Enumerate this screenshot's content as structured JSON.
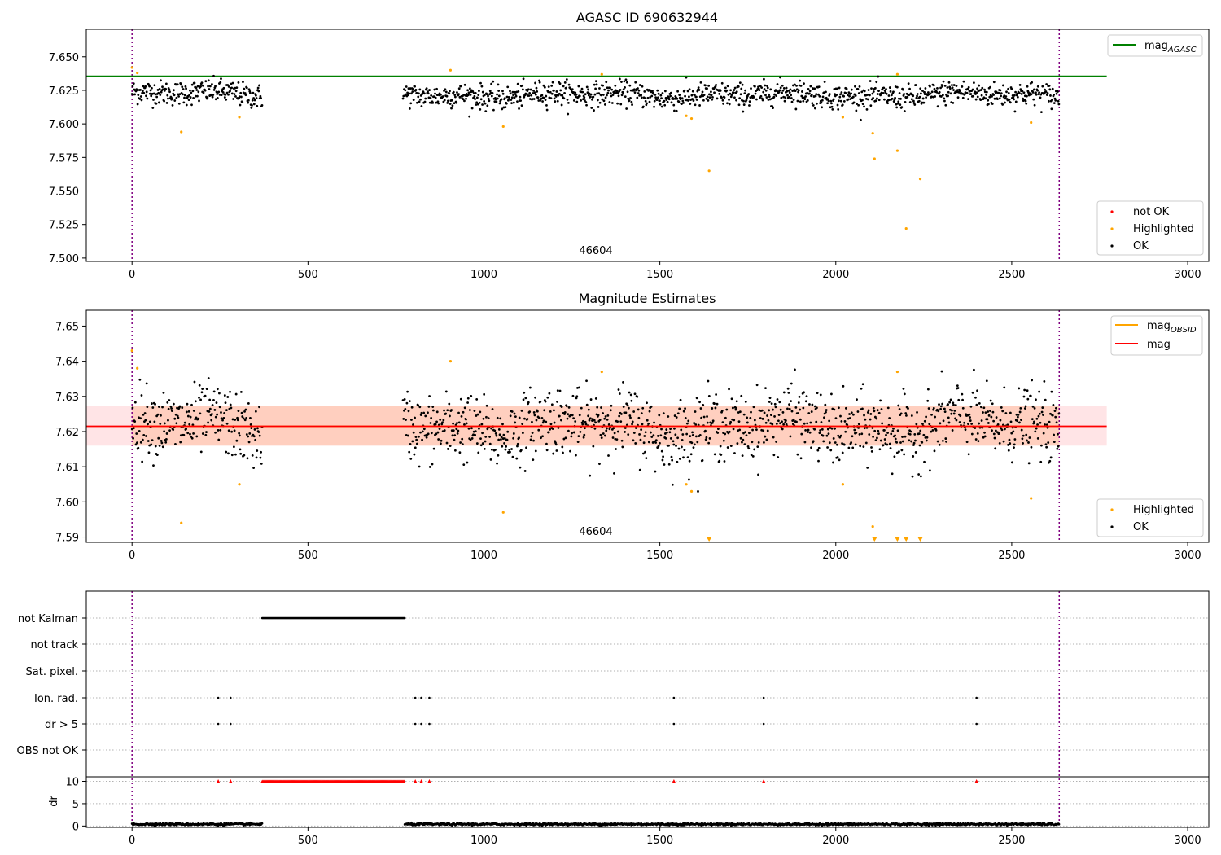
{
  "panel1": {
    "title": "AGASC ID 690632944",
    "annotation": "46604",
    "legend_line": {
      "label_main": "mag",
      "label_sub": "AGASC",
      "color": "#008000"
    },
    "legend_points": [
      {
        "label": "not OK",
        "color": "#ff0000"
      },
      {
        "label": "Highlighted",
        "color": "#ffa500"
      },
      {
        "label": "OK",
        "color": "#000000"
      }
    ]
  },
  "panel2": {
    "title": "Magnitude Estimates",
    "annotation": "46604",
    "legend_lines": [
      {
        "label_main": "mag",
        "label_sub": "OBSID",
        "color": "#ffa500"
      },
      {
        "label_main": "mag",
        "label_sub": "",
        "color": "#ff0000"
      }
    ],
    "legend_points": [
      {
        "label": "Highlighted",
        "color": "#ffa500"
      },
      {
        "label": "OK",
        "color": "#000000"
      }
    ]
  },
  "panel3": {
    "flag_labels": [
      "not Kalman",
      "not track",
      "Sat. pixel.",
      "Ion. rad.",
      "dr > 5",
      "OBS not OK"
    ],
    "dr_ylabel": "dr"
  },
  "chart_data": [
    {
      "type": "scatter",
      "title": "AGASC ID 690632944",
      "xlim": [
        -130,
        3060
      ],
      "ylim": [
        7.4975,
        7.6705
      ],
      "xticks": [
        0,
        500,
        1000,
        1500,
        2000,
        2500,
        3000
      ],
      "yticks": [
        7.5,
        7.525,
        7.55,
        7.575,
        7.6,
        7.625,
        7.65
      ],
      "obs_boundaries": [
        0,
        2635
      ],
      "hlines": [
        {
          "name": "mag_AGASC",
          "y": 7.6355,
          "x_range": [
            -130,
            2770
          ],
          "color": "#008000"
        }
      ],
      "ok_segments": [
        [
          0,
          370,
          7.6225
        ],
        [
          770,
          2635,
          7.6215
        ]
      ],
      "ok_scatter": 0.0045,
      "highlighted": [
        [
          0,
          7.642
        ],
        [
          15,
          7.638
        ],
        [
          140,
          7.594
        ],
        [
          305,
          7.605
        ],
        [
          905,
          7.64
        ],
        [
          1055,
          7.598
        ],
        [
          1335,
          7.637
        ],
        [
          1575,
          7.606
        ],
        [
          1590,
          7.604
        ],
        [
          1640,
          7.565
        ],
        [
          2020,
          7.605
        ],
        [
          2105,
          7.593
        ],
        [
          2110,
          7.574
        ],
        [
          2175,
          7.637
        ],
        [
          2175,
          7.58
        ],
        [
          2200,
          7.522
        ],
        [
          2240,
          7.559
        ],
        [
          2555,
          7.601
        ]
      ],
      "grid": false,
      "legend": "upper right (line), lower right (points)"
    },
    {
      "type": "scatter",
      "title": "Magnitude Estimates",
      "xlim": [
        -130,
        3060
      ],
      "ylim": [
        7.5885,
        7.6545
      ],
      "xticks": [
        0,
        500,
        1000,
        1500,
        2000,
        2500,
        3000
      ],
      "yticks": [
        7.59,
        7.6,
        7.61,
        7.62,
        7.63,
        7.64,
        7.65
      ],
      "obs_boundaries": [
        0,
        2635
      ],
      "hlines": [
        {
          "name": "mag_OBSID",
          "y": 7.6215,
          "x_range": [
            0,
            2635
          ],
          "color": "#ffa500"
        },
        {
          "name": "mag",
          "y": 7.6215,
          "x_range": [
            -130,
            2770
          ],
          "color": "#ff0000"
        }
      ],
      "bands": [
        {
          "y": [
            7.616,
            7.6272
          ],
          "x_range": [
            0,
            2635
          ],
          "color": "#ffcfbf"
        },
        {
          "y": [
            7.616,
            7.6272
          ],
          "x_range": [
            -130,
            2770
          ],
          "color": "#ffe4e6"
        }
      ],
      "ok_segments": [
        [
          0,
          370,
          7.6215
        ],
        [
          770,
          2635,
          7.6215
        ]
      ],
      "ok_scatter": 0.0048,
      "highlighted": [
        [
          0,
          7.643
        ],
        [
          15,
          7.638
        ],
        [
          140,
          7.594
        ],
        [
          305,
          7.605
        ],
        [
          905,
          7.64
        ],
        [
          1055,
          7.597
        ],
        [
          1335,
          7.637
        ],
        [
          1575,
          7.605
        ],
        [
          1590,
          7.603
        ],
        [
          2020,
          7.605
        ],
        [
          2105,
          7.593
        ],
        [
          2175,
          7.637
        ],
        [
          2555,
          7.601
        ]
      ],
      "highlighted_below_range_x": [
        1640,
        2110,
        2175,
        2200,
        2240
      ],
      "grid": false,
      "legend": "upper right (lines), lower right (points)"
    },
    {
      "type": "scatter",
      "title": "",
      "xlim": [
        -130,
        3060
      ],
      "xticks": [
        0,
        500,
        1000,
        1500,
        2000,
        2500,
        3000
      ],
      "obs_boundaries": [
        0,
        2635
      ],
      "categories": [
        "not Kalman",
        "not track",
        "Sat. pixel.",
        "Ion. rad.",
        "dr > 5",
        "OBS not OK"
      ],
      "flags": {
        "not Kalman": {
          "x_range": [
            370,
            775
          ]
        },
        "Ion. rad.": {
          "x": [
            245,
            280,
            805,
            822,
            845,
            1540,
            1795,
            2400
          ]
        },
        "dr > 5": {
          "x": [
            245,
            280,
            805,
            822,
            845,
            1540,
            1795,
            2400
          ]
        }
      },
      "dr": {
        "ylim": [
          -0.3,
          11
        ],
        "yticks": [
          0,
          5,
          10
        ],
        "ylabel": "dr",
        "not_ok_clipped_at": 10,
        "not_ok_x": [
          245,
          280,
          805,
          822,
          845,
          1540,
          1795,
          2400
        ],
        "not_ok_x_range": [
          370,
          775
        ],
        "ok_segments": [
          [
            0,
            370,
            0.4
          ],
          [
            775,
            2635,
            0.4
          ]
        ]
      },
      "grid": "dotted horizontal at flag rows"
    }
  ]
}
